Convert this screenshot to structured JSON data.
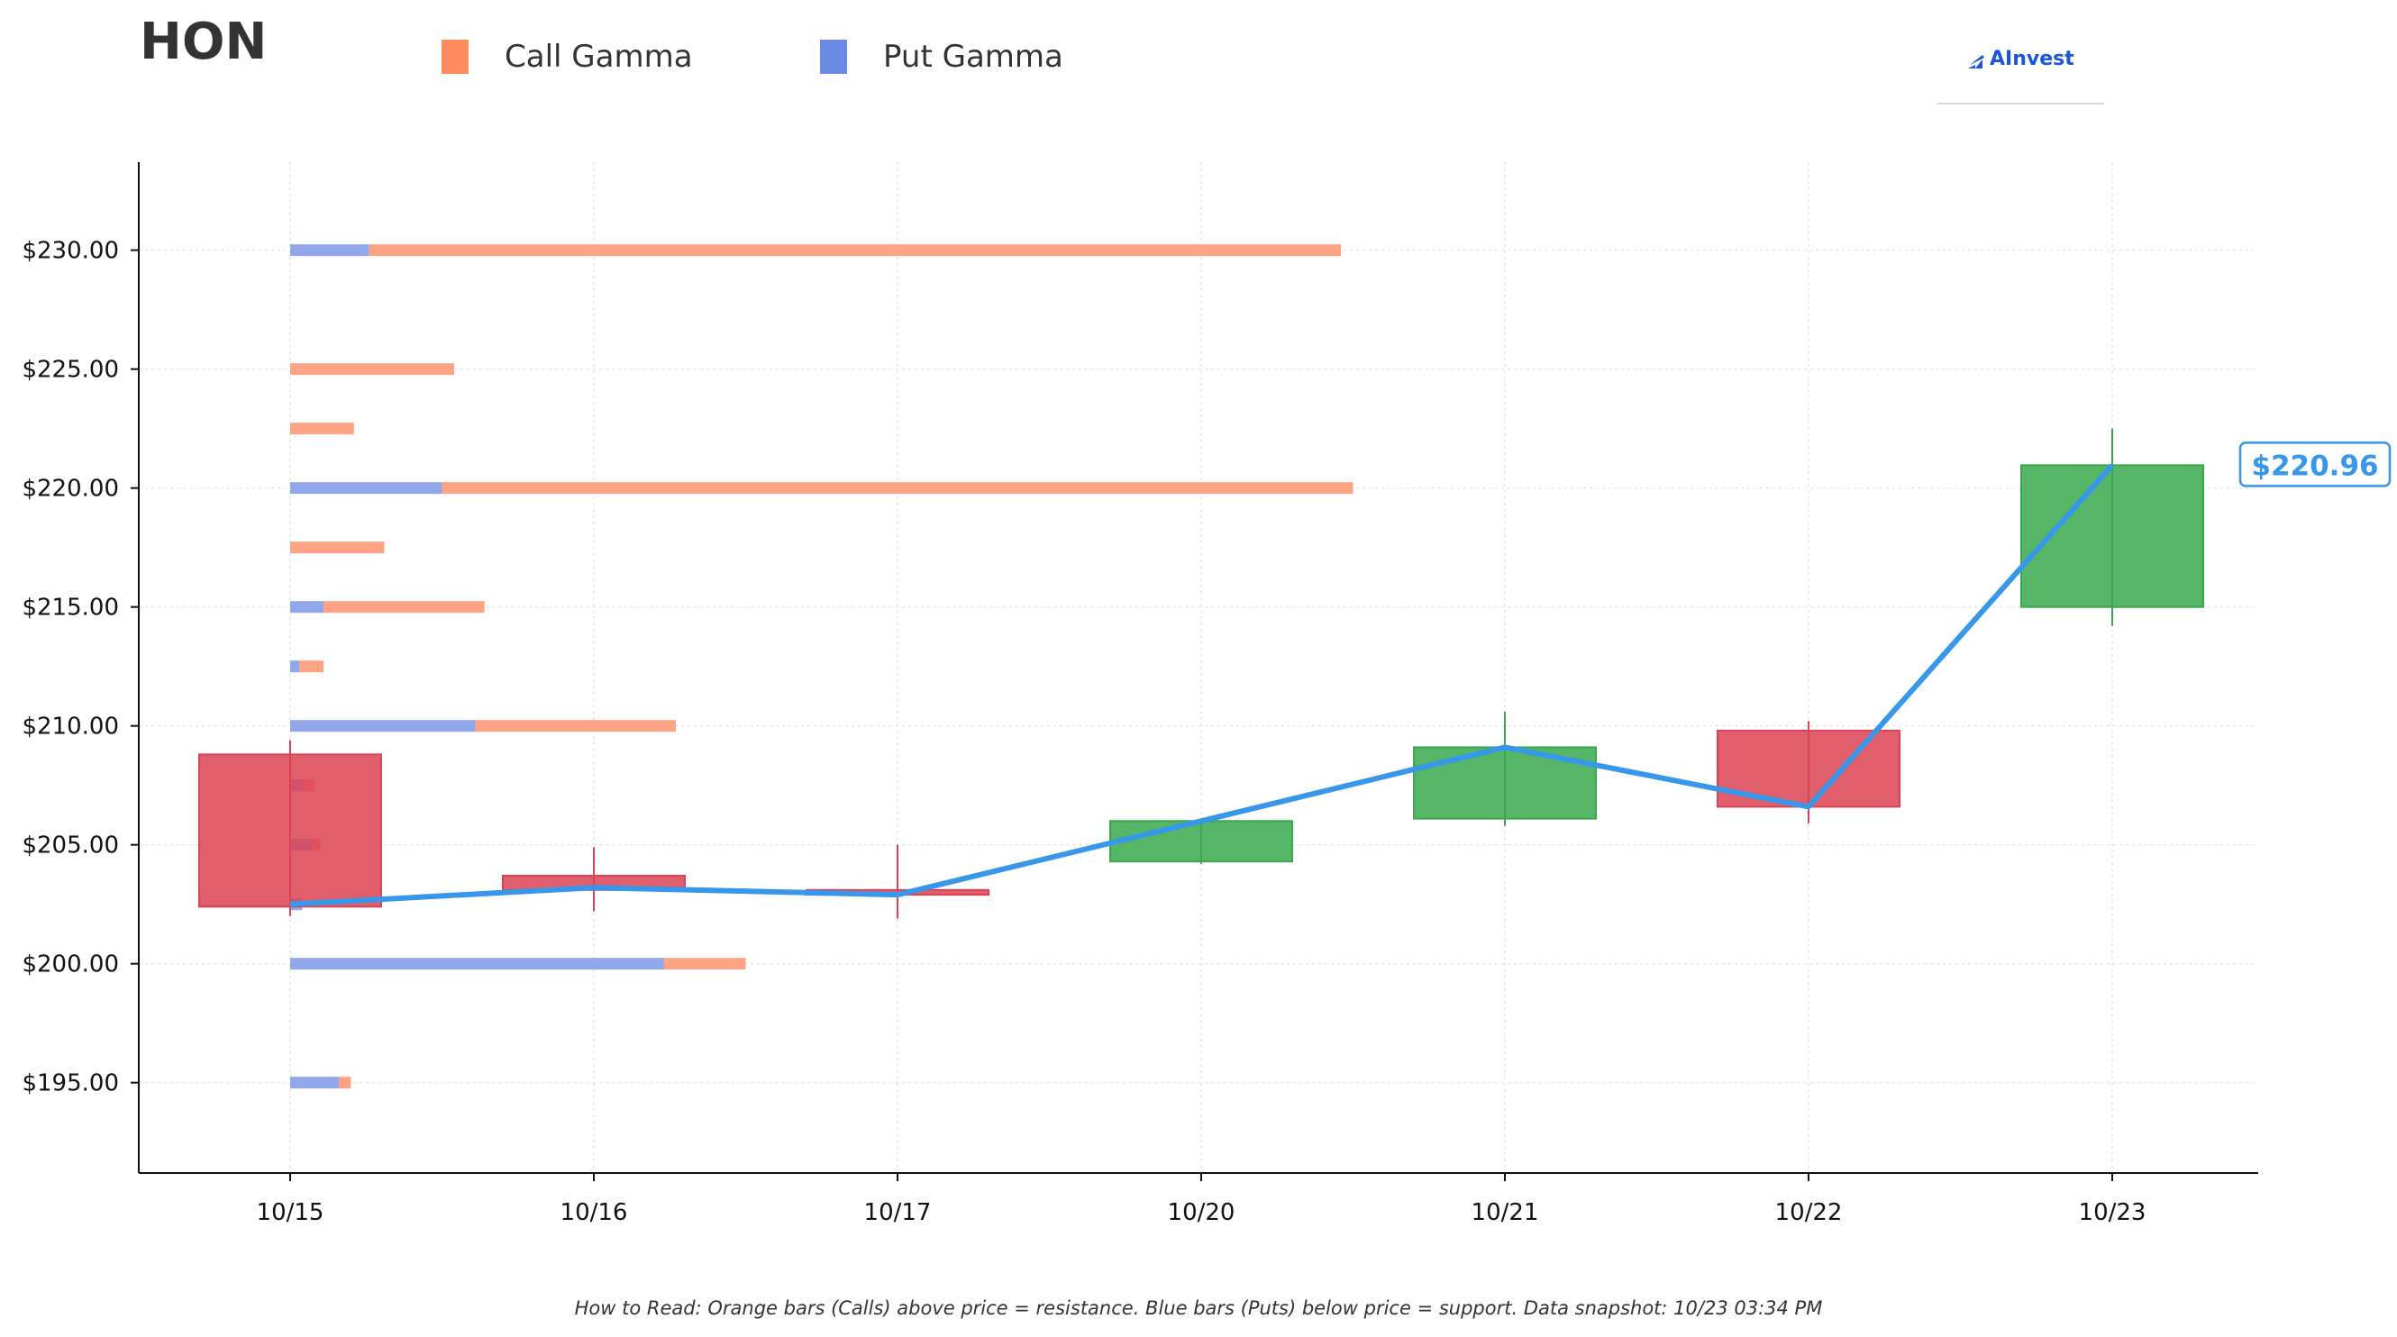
{
  "header": {
    "ticker": "HON",
    "legend": [
      {
        "label": "Call Gamma",
        "color": "#ff8c5f"
      },
      {
        "label": "Put Gamma",
        "color": "#6a8ae6"
      }
    ],
    "brand": "AInvest"
  },
  "footnote": "How to Read: Orange bars (Calls) above price = resistance. Blue bars (Puts) below price = support. Data snapshot: 10/23 03:34 PM",
  "chart_data": {
    "type": "candlestick",
    "title": "",
    "xlabel": "",
    "ylabel": "",
    "ylim": [
      191.2,
      233.7
    ],
    "grid": true,
    "colors": {
      "up": "#3aa84c",
      "down": "#dc4254",
      "line": "#3797ea",
      "call": "#ff9e7e",
      "put": "#8aa3ea"
    },
    "categories": [
      "10/15",
      "10/16",
      "10/17",
      "10/20",
      "10/21",
      "10/22",
      "10/23"
    ],
    "y_ticks": [
      {
        "value": 195,
        "label": "$195.00"
      },
      {
        "value": 200,
        "label": "$200.00"
      },
      {
        "value": 205,
        "label": "$205.00"
      },
      {
        "value": 210,
        "label": "$210.00"
      },
      {
        "value": 215,
        "label": "$215.00"
      },
      {
        "value": 220,
        "label": "$220.00"
      },
      {
        "value": 225,
        "label": "$225.00"
      },
      {
        "value": 230,
        "label": "$230.00"
      }
    ],
    "candles": [
      {
        "date": "10/15",
        "open": 208.8,
        "close": 202.4,
        "high": 209.4,
        "low": 202.0
      },
      {
        "date": "10/16",
        "open": 203.7,
        "close": 203.1,
        "high": 204.9,
        "low": 202.2
      },
      {
        "date": "10/17",
        "open": 203.1,
        "close": 202.9,
        "high": 205.0,
        "low": 201.9
      },
      {
        "date": "10/20",
        "open": 204.3,
        "close": 206.0,
        "high": 206.0,
        "low": 204.2
      },
      {
        "date": "10/21",
        "open": 206.1,
        "close": 209.1,
        "high": 210.6,
        "low": 205.8
      },
      {
        "date": "10/22",
        "open": 209.8,
        "close": 206.6,
        "high": 210.2,
        "low": 205.9
      },
      {
        "date": "10/23",
        "open": 215.0,
        "close": 220.96,
        "high": 222.5,
        "low": 214.2
      }
    ],
    "price_line": {
      "name": "",
      "values": [
        202.5,
        203.2,
        202.9,
        206.0,
        209.1,
        206.6,
        220.96
      ]
    },
    "last_price_label": "$220.96",
    "gamma_bars": {
      "note_units": "bar lengths in x-axis category units measured from 10/15",
      "strikes": [
        195,
        200,
        202.5,
        205,
        207.5,
        210,
        212.5,
        215,
        217.5,
        220,
        222.5,
        225,
        230
      ],
      "put": [
        0.16,
        1.23,
        0.04,
        0.07,
        0.04,
        0.61,
        0.03,
        0.11,
        0,
        0.5,
        0,
        0,
        0.26
      ],
      "call": [
        0.04,
        0.27,
        0,
        0.03,
        0.04,
        0.66,
        0.08,
        0.53,
        0.31,
        3.0,
        0.21,
        0.54,
        3.2
      ]
    }
  }
}
